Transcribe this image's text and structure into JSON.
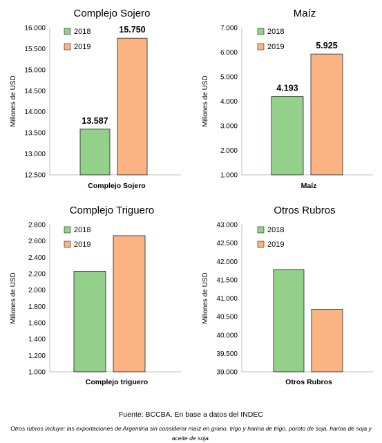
{
  "chart_data": [
    {
      "type": "bar",
      "title": "Complejo Sojero",
      "ylabel": "Millones de USD",
      "categories": [
        "Complejo Sojero"
      ],
      "ylim": [
        12500,
        16000
      ],
      "yticks": [
        "12.500",
        "13.000",
        "13.500",
        "14.000",
        "14.500",
        "15.000",
        "15.500",
        "16.000"
      ],
      "series": [
        {
          "name": "2018",
          "values": [
            13587
          ],
          "label": "13.587",
          "color": "#93d18a"
        },
        {
          "name": "2019",
          "values": [
            15750
          ],
          "label": "15.750",
          "color": "#fbb383"
        }
      ],
      "show_data_labels": true,
      "legend_placement": "top-left"
    },
    {
      "type": "bar",
      "title": "Maíz",
      "ylabel": "Millones de USD",
      "categories": [
        "Maíz"
      ],
      "ylim": [
        1000,
        7000
      ],
      "yticks": [
        "1.000",
        "2.000",
        "3.000",
        "4.000",
        "5.000",
        "6.000",
        "7.000"
      ],
      "series": [
        {
          "name": "2018",
          "values": [
            4193
          ],
          "label": "4.193",
          "color": "#93d18a"
        },
        {
          "name": "2019",
          "values": [
            5925
          ],
          "label": "5.925",
          "color": "#fbb383"
        }
      ],
      "show_data_labels": true,
      "legend_placement": "top-left"
    },
    {
      "type": "bar",
      "title": "Complejo Triguero",
      "ylabel": "Millones de USD",
      "categories": [
        "Complejo triguero"
      ],
      "ylim": [
        1000,
        2800
      ],
      "yticks": [
        "1.000",
        "1.200",
        "1.400",
        "1.600",
        "1.800",
        "2.000",
        "2.200",
        "2.400",
        "2.600",
        "2.800"
      ],
      "series": [
        {
          "name": "2018",
          "values": [
            2230
          ],
          "color": "#93d18a"
        },
        {
          "name": "2019",
          "values": [
            2665
          ],
          "color": "#fbb383"
        }
      ],
      "show_data_labels": false,
      "legend_placement": "top-left"
    },
    {
      "type": "bar",
      "title": "Otros Rubros",
      "ylabel": "Millones de USD",
      "categories": [
        "Otros Rubros"
      ],
      "ylim": [
        39000,
        43000
      ],
      "yticks": [
        "39.000",
        "39.500",
        "40.000",
        "40.500",
        "41.000",
        "41.500",
        "42.000",
        "42.500",
        "43.000"
      ],
      "series": [
        {
          "name": "2018",
          "values": [
            41780
          ],
          "color": "#93d18a"
        },
        {
          "name": "2019",
          "values": [
            40700
          ],
          "color": "#fbb383"
        }
      ],
      "show_data_labels": false,
      "legend_placement": "top-left"
    }
  ],
  "footer": {
    "source": "Fuente: BCCBA. En base a datos del INDEC",
    "note": "Otros rubros incluye: las exportaciones de Argentina sin considerar maíz en grano, trigo y harina de trigo, poroto de soja, harina de soja y aceite de soja."
  }
}
